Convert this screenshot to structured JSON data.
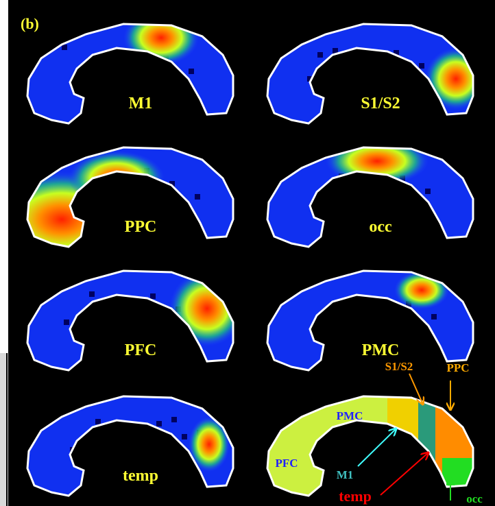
{
  "panel_label": "(b)",
  "maps": [
    "M1",
    "S1/S2",
    "PPC",
    "occ",
    "PFC",
    "PMC",
    "temp"
  ],
  "summary": {
    "S1/S2": "S1/S2",
    "PPC": "PPC",
    "PMC": "PMC",
    "PFC": "PFC",
    "M1": "M1",
    "temp": "temp",
    "occ": "occ"
  }
}
